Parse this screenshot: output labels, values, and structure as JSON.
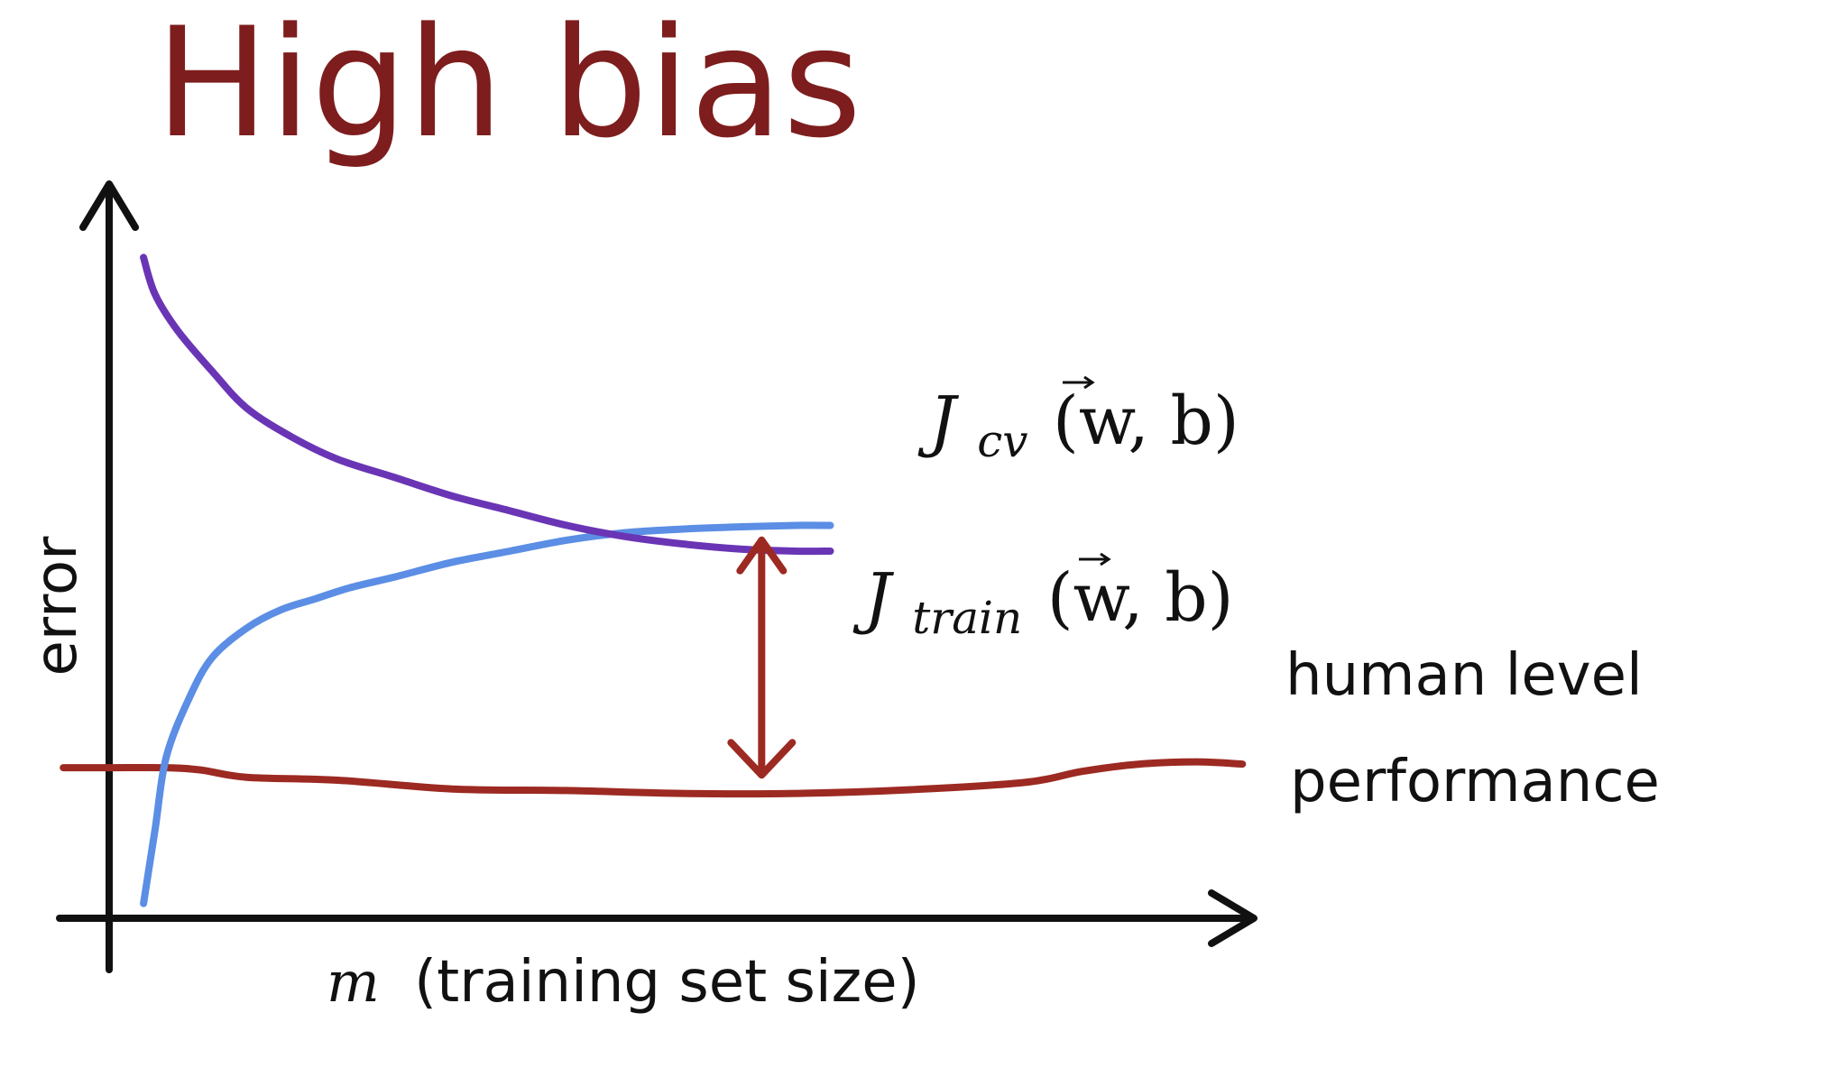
{
  "chart_data": {
    "type": "line",
    "title": "High bias",
    "xlabel": "(training set size)",
    "xlabel_symbol": "m",
    "ylabel": "error",
    "xlim": [
      0,
      100
    ],
    "ylim": [
      0,
      100
    ],
    "grid": false,
    "legend": "direct labels on curves",
    "series": [
      {
        "name": "J_cv(w,b)",
        "label_main": "J",
        "label_sub": "cv",
        "label_args": "(w, b)",
        "color": "#6a35b5",
        "x": [
          3,
          4,
          6,
          9,
          12,
          16,
          20,
          25,
          30,
          35,
          40,
          45,
          50,
          55,
          60,
          63
        ],
        "y": [
          90,
          85,
          80,
          74.5,
          69.5,
          65.5,
          62.5,
          60,
          57.5,
          55.5,
          53.5,
          52,
          51,
          50.3,
          50,
          50
        ]
      },
      {
        "name": "J_train(w,b)",
        "label_main": "J",
        "label_sub": "train",
        "label_args": "(w, b)",
        "color": "#5b8ee4",
        "x": [
          3,
          4,
          5,
          7,
          9,
          12,
          15,
          18,
          21,
          25,
          30,
          35,
          40,
          45,
          50,
          55,
          60,
          63
        ],
        "y": [
          2,
          12,
          22,
          30,
          35.5,
          39.5,
          42,
          43.5,
          45,
          46.5,
          48.5,
          50,
          51.5,
          52.5,
          53,
          53.3,
          53.5,
          53.5
        ]
      },
      {
        "name": "human level performance",
        "label_lines": [
          "human level",
          "performance"
        ],
        "color": "#9c2a22",
        "x": [
          -4,
          0,
          5,
          8,
          12,
          20,
          30,
          40,
          50,
          60,
          70,
          80,
          85,
          90,
          95,
          99
        ],
        "y": [
          20.5,
          20.5,
          20.5,
          20.2,
          19.2,
          18.8,
          17.6,
          17.4,
          17.0,
          17.0,
          17.5,
          18.5,
          20.0,
          21.0,
          21.3,
          21.0
        ]
      }
    ],
    "annotations": [
      {
        "type": "double-arrow",
        "x": 57,
        "y_from": 51.5,
        "y_to": 19.5,
        "color": "#9c2a22"
      }
    ]
  }
}
